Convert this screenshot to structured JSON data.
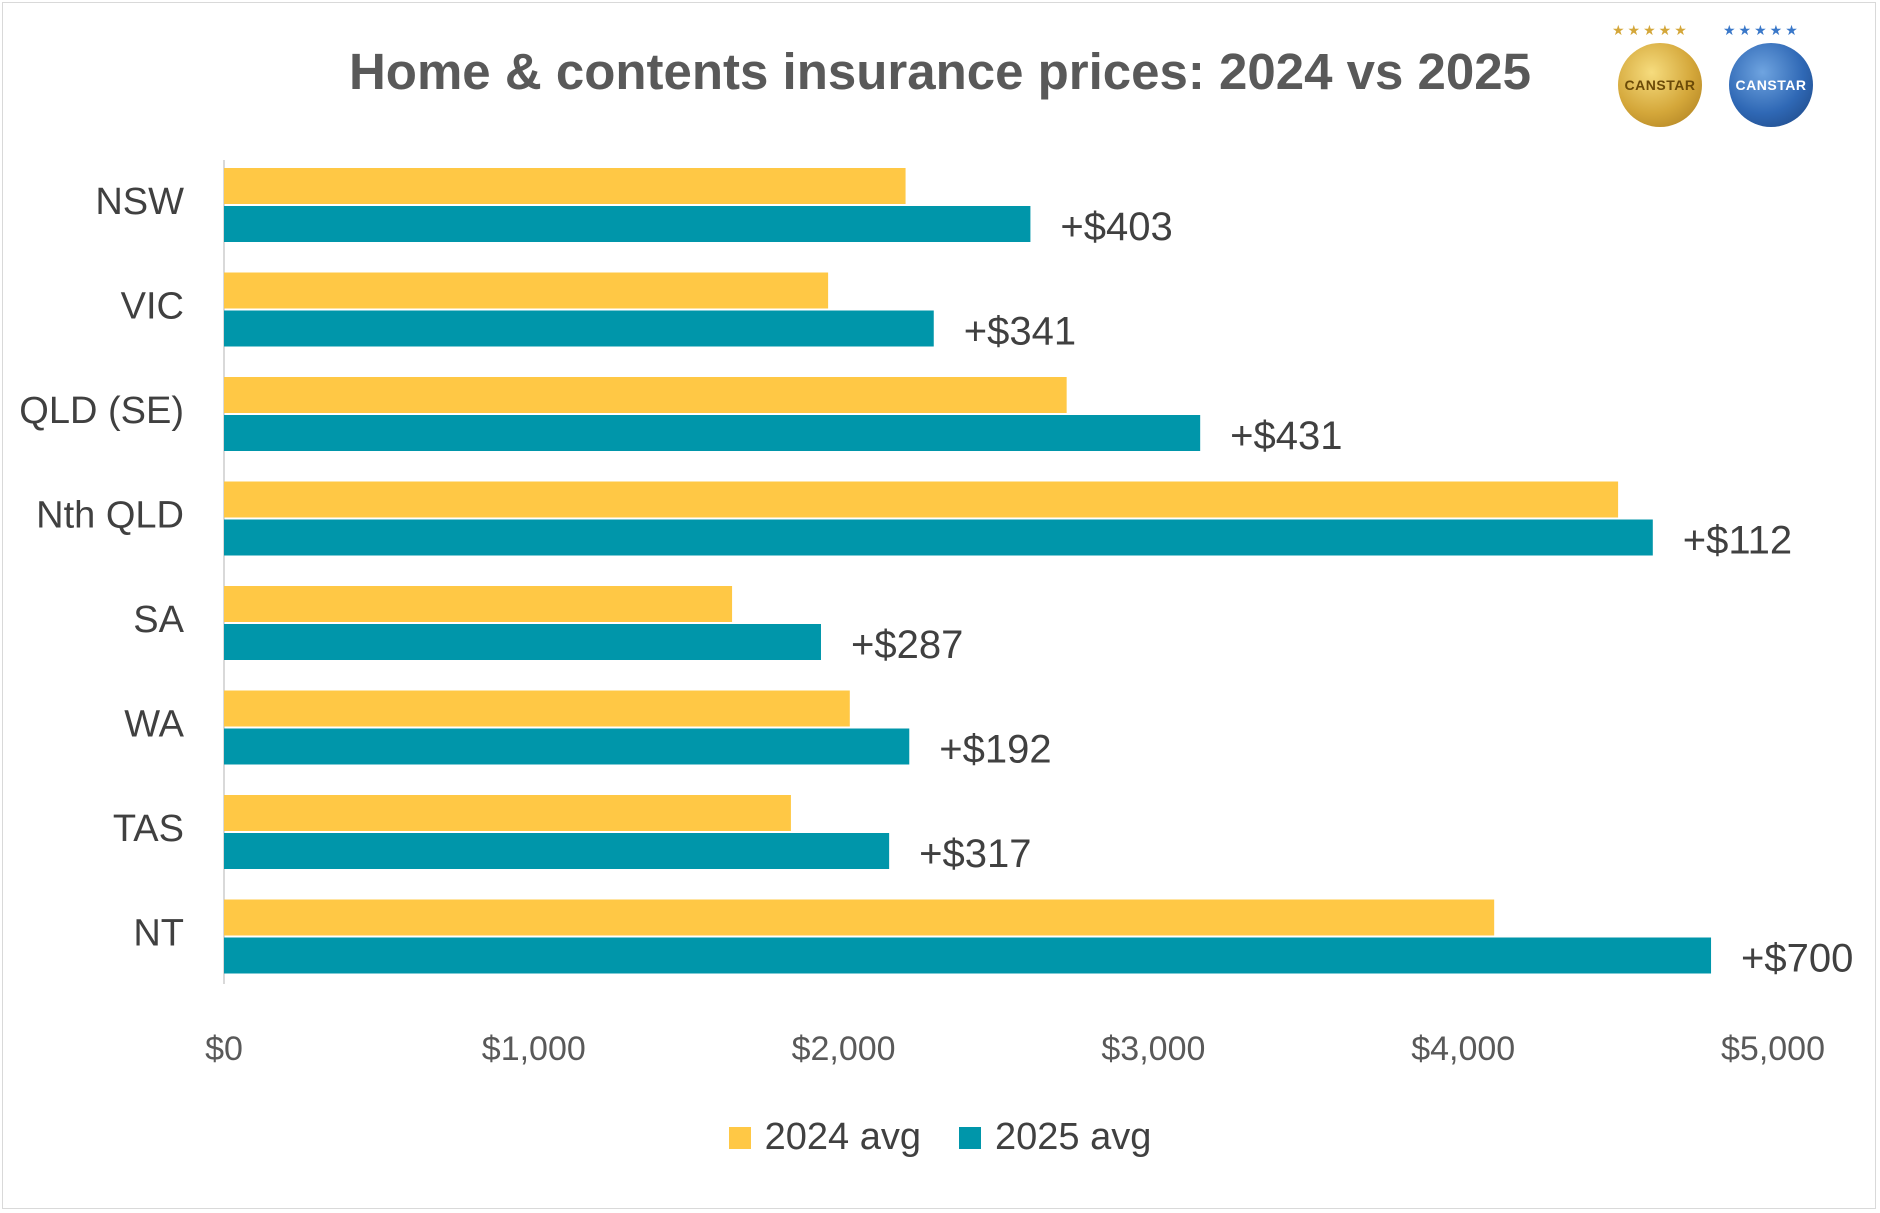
{
  "chart_data": {
    "type": "bar",
    "orientation": "horizontal",
    "title": "Home & contents insurance prices: 2024 vs 2025",
    "categories": [
      "NSW",
      "VIC",
      "QLD (SE)",
      "Nth QLD",
      "SA",
      "WA",
      "TAS",
      "NT"
    ],
    "series": [
      {
        "name": "2024 avg",
        "color": "#FFC845",
        "values": [
          2200,
          1950,
          2720,
          4500,
          1640,
          2020,
          1830,
          4100
        ]
      },
      {
        "name": "2025 avg",
        "color": "#0096AA",
        "values": [
          2603,
          2291,
          3151,
          4612,
          1927,
          2212,
          2147,
          4800
        ]
      }
    ],
    "data_labels": [
      "+$403",
      "+$341",
      "+$431",
      "+$112",
      "+$287",
      "+$192",
      "+$317",
      "+$700"
    ],
    "xlim": [
      0,
      5000
    ],
    "x_ticks": [
      0,
      1000,
      2000,
      3000,
      4000,
      5000
    ],
    "x_tick_labels": [
      "$0",
      "$1,000",
      "$2,000",
      "$3,000",
      "$4,000",
      "$5,000"
    ],
    "xlabel": "",
    "ylabel": "",
    "grid": false,
    "legend_position": "bottom"
  },
  "branding": {
    "logos": [
      "CANSTAR",
      "CANSTAR"
    ],
    "stars": [
      "★★★★★",
      "★★★★★"
    ]
  }
}
